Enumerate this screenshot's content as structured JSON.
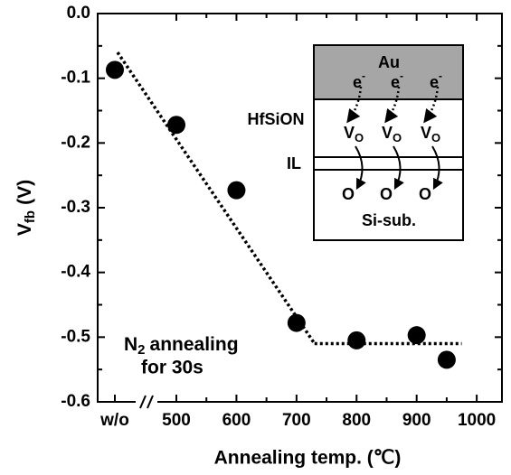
{
  "chart_data": {
    "type": "scatter",
    "xlabel": "Annealing temp. (℃)",
    "ylabel": {
      "symbol": "V",
      "subscript": "fb",
      "unit": "(V)"
    },
    "reference": {
      "label": "w/o",
      "value": -0.087
    },
    "x": [
      500,
      600,
      700,
      800,
      900,
      950
    ],
    "values": [
      -0.172,
      -0.273,
      -0.478,
      -0.505,
      -0.497,
      -0.535
    ],
    "color": "#000000",
    "fit": {
      "start": -0.06,
      "x": [
        730,
        975
      ],
      "values": [
        -0.51,
        -0.51
      ]
    },
    "xlim": [
      369,
      1042
    ],
    "xticks": [
      500,
      600,
      700,
      800,
      900,
      1000
    ],
    "ylim": [
      -0.6,
      0
    ],
    "yticks": [
      {
        "value": 0,
        "label": "0.0"
      },
      -0.1,
      -0.2,
      -0.3,
      -0.4,
      -0.5,
      -0.6
    ],
    "annotation": {
      "line1": {
        "symbol": "N",
        "subscript": "2",
        "text": "annealing"
      },
      "line2": "for 30s"
    },
    "inset": {
      "top_layer": "Au",
      "electron": {
        "symbol": "e",
        "superscript": "-"
      },
      "dielectric": "HfSiON",
      "vacancy": {
        "symbol": "V",
        "subscript": "O"
      },
      "interlayer": "IL",
      "oxygen": "O",
      "substrate": "Si-sub."
    }
  }
}
